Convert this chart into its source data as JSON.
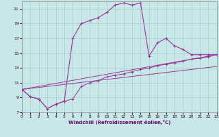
{
  "bg_color": "#c8e8e8",
  "grid_color": "#a8cccc",
  "line_color": "#993399",
  "xlabel": "Windchill (Refroidissement éolien,°C)",
  "xlim": [
    0,
    23
  ],
  "ylim": [
    7,
    22
  ],
  "yticks": [
    7,
    9,
    11,
    13,
    15,
    17,
    19,
    21
  ],
  "xticks": [
    0,
    1,
    2,
    3,
    4,
    5,
    6,
    7,
    8,
    9,
    10,
    11,
    12,
    13,
    14,
    15,
    16,
    17,
    18,
    19,
    20,
    21,
    22,
    23
  ],
  "curve1_x": [
    0,
    1,
    2,
    3,
    4,
    5,
    6,
    7,
    8,
    9,
    10,
    11,
    12,
    13,
    14,
    15,
    16,
    17,
    18,
    19,
    20,
    21,
    22,
    23
  ],
  "curve1_y": [
    10.1,
    9.1,
    8.8,
    7.5,
    8.1,
    8.5,
    17.0,
    19.0,
    19.4,
    19.8,
    20.5,
    21.5,
    21.8,
    21.5,
    21.8,
    14.6,
    16.4,
    17.0,
    16.0,
    15.5,
    14.8,
    14.8,
    14.8,
    14.8
  ],
  "curve2_x": [
    0,
    1,
    2,
    3,
    4,
    5,
    6,
    7,
    8,
    9,
    10,
    11,
    12,
    13,
    14,
    15,
    16,
    17,
    18,
    19,
    20,
    21,
    22,
    23
  ],
  "curve2_y": [
    10.1,
    9.1,
    8.8,
    7.5,
    8.1,
    8.5,
    8.8,
    10.5,
    11.0,
    11.3,
    11.8,
    12.0,
    12.2,
    12.5,
    12.8,
    13.0,
    13.3,
    13.5,
    13.7,
    13.9,
    14.2,
    14.3,
    14.5,
    14.8
  ],
  "line1_x": [
    0,
    23
  ],
  "line1_y": [
    10.1,
    14.8
  ],
  "line2_x": [
    0,
    23
  ],
  "line2_y": [
    10.1,
    13.2
  ]
}
